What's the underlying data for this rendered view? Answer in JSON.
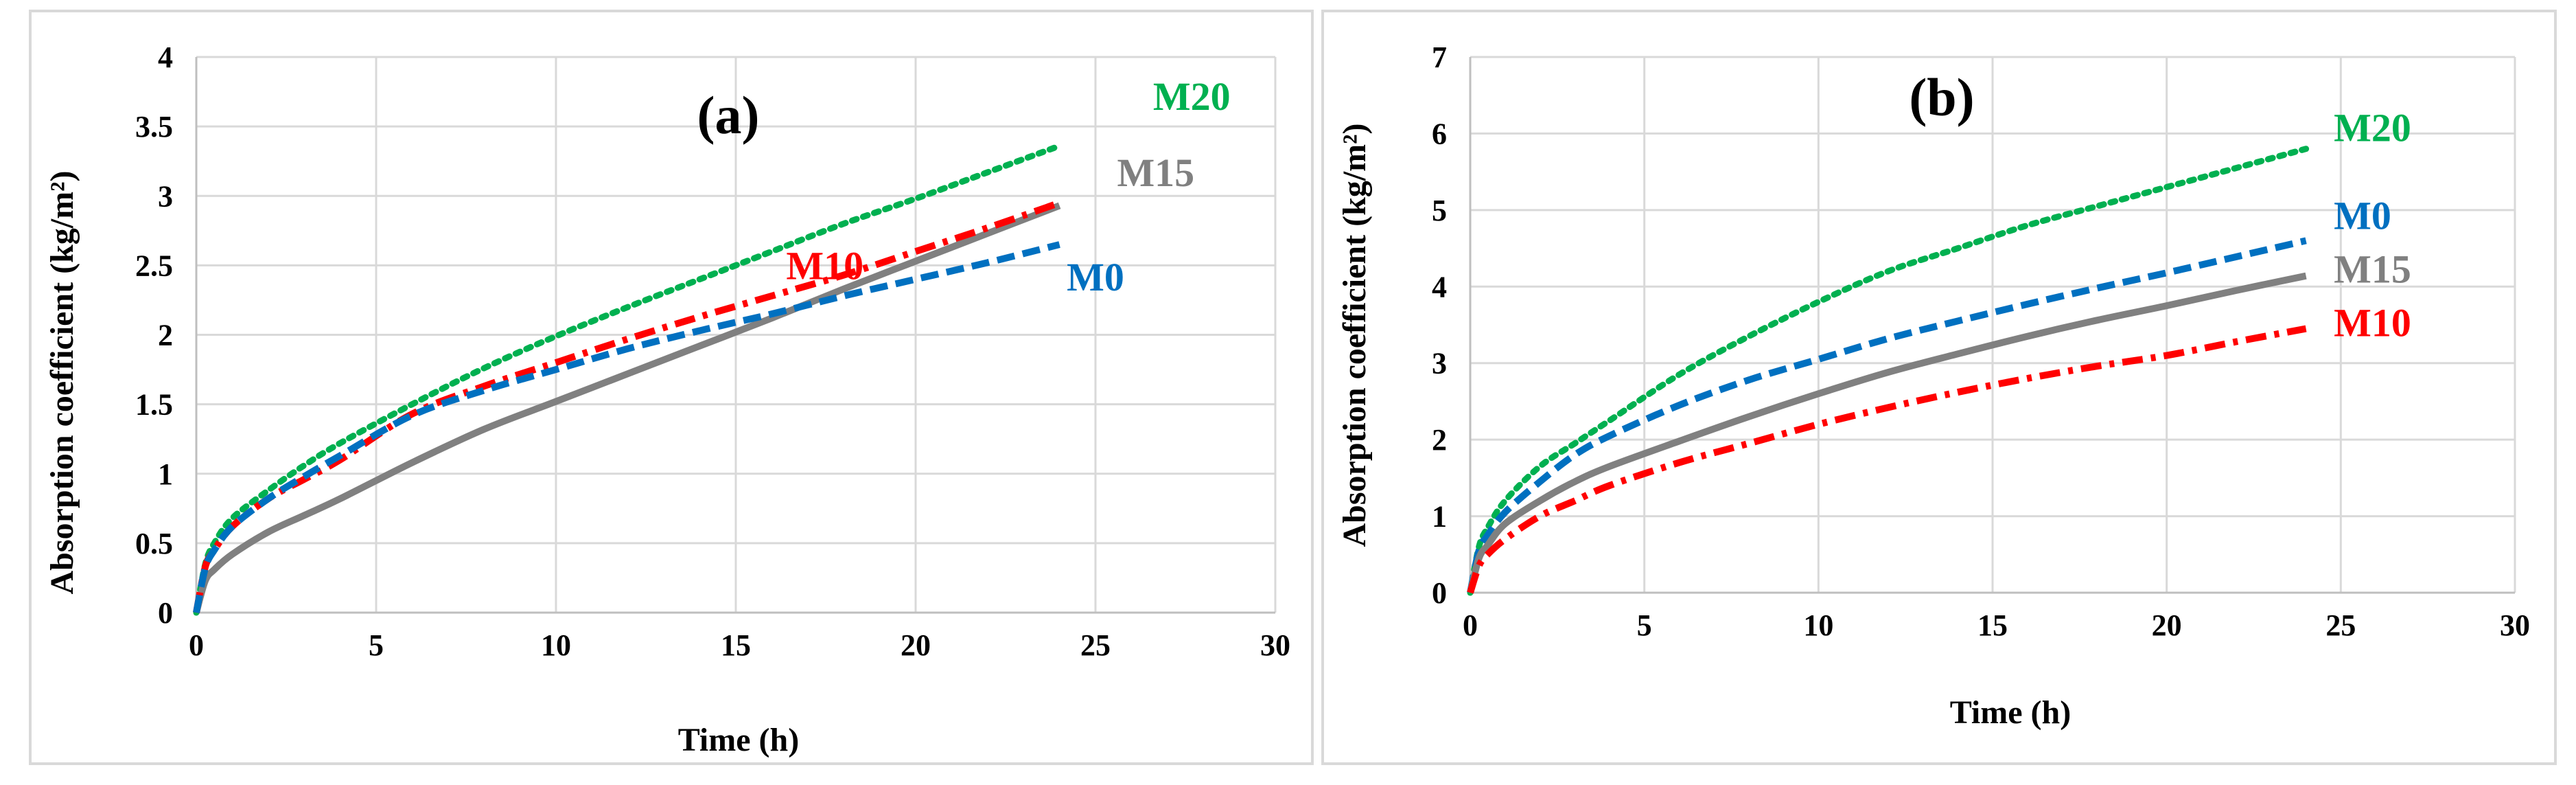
{
  "chart_data": [
    {
      "type": "line",
      "panel_label": "(a)",
      "xlabel": "Time (h)",
      "ylabel": "Absorption coefficient (kg/m²)",
      "xlim": [
        0,
        30
      ],
      "ylim": [
        0,
        4
      ],
      "xticks": [
        "0",
        "5",
        "10",
        "15",
        "20",
        "25",
        "30"
      ],
      "yticks": [
        "0",
        "0.5",
        "1",
        "1.5",
        "2",
        "2.5",
        "3",
        "3.5",
        "4"
      ],
      "grid": true,
      "series": [
        {
          "name": "M20",
          "style": "dotted",
          "color": "#00b050",
          "x": [
            0,
            0.25,
            0.5,
            1,
            2,
            3,
            4,
            6,
            8,
            10,
            12,
            14,
            16,
            18,
            20,
            22,
            24
          ],
          "y": [
            0,
            0.35,
            0.5,
            0.68,
            0.88,
            1.06,
            1.22,
            1.5,
            1.76,
            1.99,
            2.2,
            2.4,
            2.6,
            2.8,
            2.98,
            3.17,
            3.36
          ]
        },
        {
          "name": "M15",
          "style": "solid",
          "color": "#808080",
          "x": [
            0,
            0.25,
            0.5,
            1,
            2,
            3,
            4,
            6,
            8,
            10,
            12,
            14,
            16,
            18,
            20,
            22,
            24
          ],
          "y": [
            0,
            0.23,
            0.31,
            0.42,
            0.58,
            0.7,
            0.82,
            1.08,
            1.32,
            1.52,
            1.72,
            1.92,
            2.12,
            2.33,
            2.53,
            2.73,
            2.93
          ]
        },
        {
          "name": "M10",
          "style": "dash-dot",
          "color": "#ff0000",
          "x": [
            0,
            0.25,
            0.5,
            1,
            2,
            3,
            4,
            6,
            8,
            10,
            12,
            14,
            16,
            18,
            20,
            22,
            24
          ],
          "y": [
            0,
            0.33,
            0.45,
            0.62,
            0.82,
            0.96,
            1.1,
            1.43,
            1.63,
            1.8,
            1.97,
            2.13,
            2.28,
            2.43,
            2.6,
            2.77,
            2.95
          ]
        },
        {
          "name": "M0",
          "style": "dashed",
          "color": "#0070c0",
          "x": [
            0,
            0.25,
            0.5,
            1,
            2,
            3,
            4,
            6,
            8,
            10,
            12,
            14,
            16,
            18,
            20,
            22,
            24
          ],
          "y": [
            0,
            0.32,
            0.45,
            0.62,
            0.82,
            0.98,
            1.13,
            1.42,
            1.6,
            1.75,
            1.9,
            2.03,
            2.15,
            2.28,
            2.4,
            2.52,
            2.65
          ]
        }
      ],
      "annotations": [
        {
          "text": "M20",
          "series": "M20",
          "x": 26.6,
          "y": 3.62
        },
        {
          "text": "M15",
          "series": "M15",
          "x": 25.6,
          "y": 3.07
        },
        {
          "text": "M10",
          "series": "M10",
          "x": 16.4,
          "y": 2.4
        },
        {
          "text": "M0",
          "series": "M0",
          "x": 24.2,
          "y": 2.32
        }
      ]
    },
    {
      "type": "line",
      "panel_label": "(b)",
      "xlabel": "Time (h)",
      "ylabel": "Absorption coefficient (kg/m²)",
      "xlim": [
        0,
        30
      ],
      "ylim": [
        0,
        7
      ],
      "xticks": [
        "0",
        "5",
        "10",
        "15",
        "20",
        "25",
        "30"
      ],
      "yticks": [
        "0",
        "1",
        "2",
        "3",
        "4",
        "5",
        "6",
        "7"
      ],
      "grid": true,
      "series": [
        {
          "name": "M20",
          "style": "dotted",
          "color": "#00b050",
          "x": [
            0,
            0.25,
            0.5,
            1,
            2,
            3,
            4,
            6,
            8,
            10,
            12,
            14,
            16,
            18,
            20,
            22,
            24
          ],
          "y": [
            0,
            0.6,
            0.85,
            1.2,
            1.65,
            1.95,
            2.25,
            2.85,
            3.35,
            3.8,
            4.2,
            4.5,
            4.8,
            5.05,
            5.3,
            5.55,
            5.8
          ]
        },
        {
          "name": "M0",
          "style": "dashed",
          "color": "#0070c0",
          "x": [
            0,
            0.25,
            0.5,
            1,
            2,
            3,
            4,
            6,
            8,
            10,
            12,
            14,
            16,
            18,
            20,
            22,
            24
          ],
          "y": [
            0,
            0.55,
            0.75,
            1.05,
            1.45,
            1.8,
            2.05,
            2.45,
            2.78,
            3.05,
            3.32,
            3.55,
            3.77,
            3.98,
            4.18,
            4.39,
            4.6
          ]
        },
        {
          "name": "M15",
          "style": "solid",
          "color": "#808080",
          "x": [
            0,
            0.25,
            0.5,
            1,
            2,
            3,
            4,
            6,
            8,
            10,
            12,
            14,
            16,
            18,
            20,
            22,
            24
          ],
          "y": [
            0,
            0.45,
            0.62,
            0.9,
            1.2,
            1.45,
            1.65,
            1.98,
            2.3,
            2.6,
            2.88,
            3.12,
            3.35,
            3.56,
            3.75,
            3.95,
            4.14
          ]
        },
        {
          "name": "M10",
          "style": "dash-dot",
          "color": "#ff0000",
          "x": [
            0,
            0.25,
            0.5,
            1,
            2,
            3,
            4,
            6,
            8,
            10,
            12,
            14,
            16,
            18,
            20,
            22,
            24
          ],
          "y": [
            0,
            0.35,
            0.5,
            0.7,
            1.0,
            1.2,
            1.4,
            1.7,
            1.95,
            2.2,
            2.42,
            2.62,
            2.8,
            2.96,
            3.1,
            3.28,
            3.45
          ]
        }
      ],
      "annotations": [
        {
          "text": "M20",
          "series": "M20",
          "x": 24.8,
          "y": 5.9
        },
        {
          "text": "M0",
          "series": "M0",
          "x": 24.8,
          "y": 4.75
        },
        {
          "text": "M15",
          "series": "M15",
          "x": 24.8,
          "y": 4.05
        },
        {
          "text": "M10",
          "series": "M10",
          "x": 24.8,
          "y": 3.35
        }
      ]
    }
  ]
}
